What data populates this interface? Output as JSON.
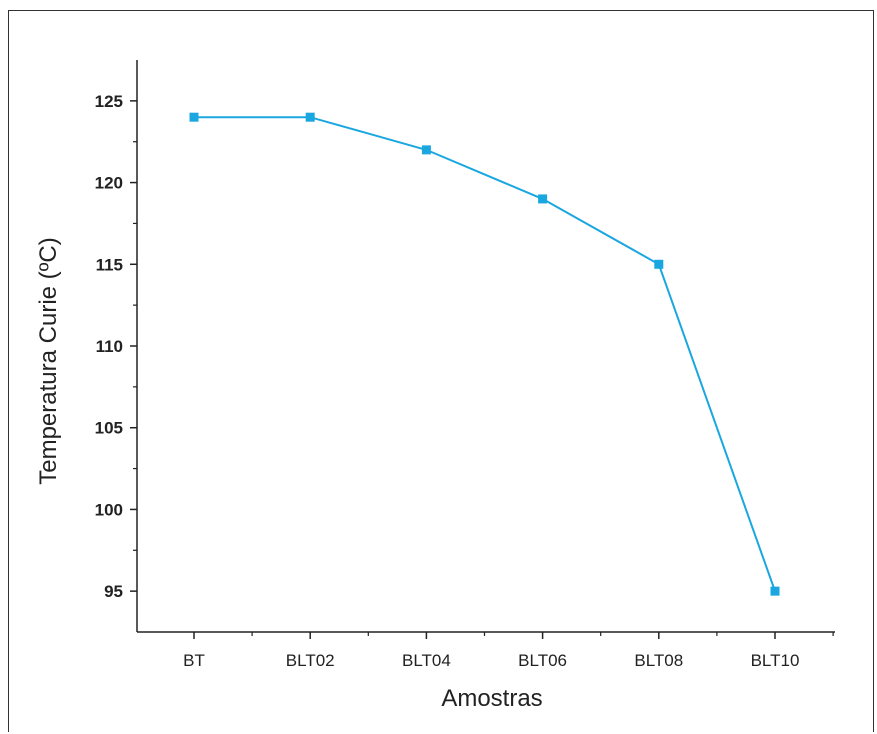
{
  "chart_data": {
    "type": "line",
    "categories": [
      "BT",
      "BLT02",
      "BLT04",
      "BLT06",
      "BLT08",
      "BLT10"
    ],
    "series": [
      {
        "values": [
          124,
          124,
          122,
          119,
          115,
          95
        ],
        "color": "#1aa7e0"
      }
    ],
    "xlabel": "Amostras",
    "ylabel": "Temperatura Curie (ºC)",
    "ylim": [
      92.5,
      127.5
    ],
    "yticks": [
      95,
      100,
      105,
      110,
      115,
      120,
      125
    ],
    "ytick_labels": [
      "95",
      "100",
      "105",
      "110",
      "115",
      "120",
      "125"
    ],
    "grid": false,
    "legend": "none",
    "marker": "square"
  }
}
